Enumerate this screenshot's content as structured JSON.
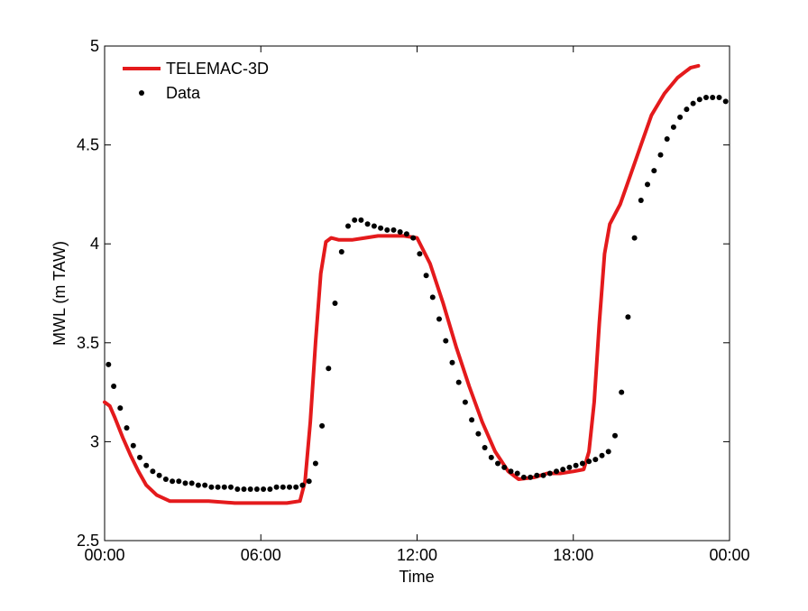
{
  "chart_data": {
    "type": "line",
    "title": "",
    "xlabel": "Time",
    "ylabel": "MWL (m TAW)",
    "xlim": [
      0,
      24
    ],
    "ylim": [
      2.5,
      5
    ],
    "x_ticks": [
      {
        "value": 0,
        "label": "00:00"
      },
      {
        "value": 6,
        "label": "06:00"
      },
      {
        "value": 12,
        "label": "12:00"
      },
      {
        "value": 18,
        "label": "18:00"
      },
      {
        "value": 24,
        "label": "00:00"
      }
    ],
    "y_ticks": [
      {
        "value": 2.5,
        "label": "2.5"
      },
      {
        "value": 3,
        "label": "3"
      },
      {
        "value": 3.5,
        "label": "3.5"
      },
      {
        "value": 4,
        "label": "4"
      },
      {
        "value": 4.5,
        "label": "4.5"
      },
      {
        "value": 5,
        "label": "5"
      }
    ],
    "grid": false,
    "legend_position": "top-left",
    "series": [
      {
        "name": "TELEMAC-3D",
        "style": "line",
        "color": "#e41a1c",
        "points": [
          [
            0.0,
            3.2
          ],
          [
            0.2,
            3.18
          ],
          [
            0.4,
            3.12
          ],
          [
            0.7,
            3.02
          ],
          [
            1.0,
            2.93
          ],
          [
            1.3,
            2.85
          ],
          [
            1.6,
            2.78
          ],
          [
            2.0,
            2.73
          ],
          [
            2.5,
            2.7
          ],
          [
            3.0,
            2.7
          ],
          [
            4.0,
            2.7
          ],
          [
            5.0,
            2.69
          ],
          [
            6.0,
            2.69
          ],
          [
            7.0,
            2.69
          ],
          [
            7.5,
            2.7
          ],
          [
            7.7,
            2.8
          ],
          [
            7.9,
            3.1
          ],
          [
            8.1,
            3.5
          ],
          [
            8.3,
            3.85
          ],
          [
            8.5,
            4.01
          ],
          [
            8.7,
            4.03
          ],
          [
            9.0,
            4.02
          ],
          [
            9.5,
            4.02
          ],
          [
            10.0,
            4.03
          ],
          [
            10.5,
            4.04
          ],
          [
            11.0,
            4.04
          ],
          [
            11.5,
            4.04
          ],
          [
            12.0,
            4.03
          ],
          [
            12.5,
            3.9
          ],
          [
            13.0,
            3.7
          ],
          [
            13.5,
            3.48
          ],
          [
            14.0,
            3.28
          ],
          [
            14.5,
            3.1
          ],
          [
            15.0,
            2.95
          ],
          [
            15.5,
            2.85
          ],
          [
            15.9,
            2.81
          ],
          [
            16.5,
            2.82
          ],
          [
            17.0,
            2.84
          ],
          [
            17.5,
            2.84
          ],
          [
            18.0,
            2.85
          ],
          [
            18.4,
            2.86
          ],
          [
            18.6,
            2.95
          ],
          [
            18.8,
            3.2
          ],
          [
            19.0,
            3.6
          ],
          [
            19.2,
            3.95
          ],
          [
            19.4,
            4.1
          ],
          [
            19.8,
            4.2
          ],
          [
            20.2,
            4.35
          ],
          [
            20.6,
            4.5
          ],
          [
            21.0,
            4.65
          ],
          [
            21.5,
            4.76
          ],
          [
            22.0,
            4.84
          ],
          [
            22.5,
            4.89
          ],
          [
            22.8,
            4.9
          ]
        ]
      },
      {
        "name": "Data",
        "style": "dots",
        "color": "#000000",
        "points": [
          [
            0.15,
            3.39
          ],
          [
            0.35,
            3.28
          ],
          [
            0.6,
            3.17
          ],
          [
            0.85,
            3.07
          ],
          [
            1.1,
            2.98
          ],
          [
            1.35,
            2.92
          ],
          [
            1.6,
            2.88
          ],
          [
            1.85,
            2.85
          ],
          [
            2.1,
            2.83
          ],
          [
            2.35,
            2.81
          ],
          [
            2.6,
            2.8
          ],
          [
            2.85,
            2.8
          ],
          [
            3.1,
            2.79
          ],
          [
            3.35,
            2.79
          ],
          [
            3.6,
            2.78
          ],
          [
            3.85,
            2.78
          ],
          [
            4.1,
            2.77
          ],
          [
            4.35,
            2.77
          ],
          [
            4.6,
            2.77
          ],
          [
            4.85,
            2.77
          ],
          [
            5.1,
            2.76
          ],
          [
            5.35,
            2.76
          ],
          [
            5.6,
            2.76
          ],
          [
            5.85,
            2.76
          ],
          [
            6.1,
            2.76
          ],
          [
            6.35,
            2.76
          ],
          [
            6.6,
            2.77
          ],
          [
            6.85,
            2.77
          ],
          [
            7.1,
            2.77
          ],
          [
            7.35,
            2.77
          ],
          [
            7.6,
            2.78
          ],
          [
            7.85,
            2.8
          ],
          [
            8.1,
            2.89
          ],
          [
            8.35,
            3.08
          ],
          [
            8.6,
            3.37
          ],
          [
            8.85,
            3.7
          ],
          [
            9.1,
            3.96
          ],
          [
            9.35,
            4.09
          ],
          [
            9.6,
            4.12
          ],
          [
            9.85,
            4.12
          ],
          [
            10.1,
            4.1
          ],
          [
            10.35,
            4.09
          ],
          [
            10.6,
            4.08
          ],
          [
            10.85,
            4.07
          ],
          [
            11.1,
            4.07
          ],
          [
            11.35,
            4.06
          ],
          [
            11.6,
            4.05
          ],
          [
            11.85,
            4.03
          ],
          [
            12.1,
            3.95
          ],
          [
            12.35,
            3.84
          ],
          [
            12.6,
            3.73
          ],
          [
            12.85,
            3.62
          ],
          [
            13.1,
            3.51
          ],
          [
            13.35,
            3.4
          ],
          [
            13.6,
            3.3
          ],
          [
            13.85,
            3.2
          ],
          [
            14.1,
            3.11
          ],
          [
            14.35,
            3.04
          ],
          [
            14.6,
            2.97
          ],
          [
            14.85,
            2.92
          ],
          [
            15.1,
            2.89
          ],
          [
            15.35,
            2.87
          ],
          [
            15.6,
            2.85
          ],
          [
            15.85,
            2.84
          ],
          [
            16.1,
            2.82
          ],
          [
            16.35,
            2.82
          ],
          [
            16.6,
            2.83
          ],
          [
            16.85,
            2.83
          ],
          [
            17.1,
            2.84
          ],
          [
            17.35,
            2.85
          ],
          [
            17.6,
            2.86
          ],
          [
            17.85,
            2.87
          ],
          [
            18.1,
            2.88
          ],
          [
            18.35,
            2.89
          ],
          [
            18.6,
            2.9
          ],
          [
            18.85,
            2.91
          ],
          [
            19.1,
            2.93
          ],
          [
            19.35,
            2.95
          ],
          [
            19.6,
            3.03
          ],
          [
            19.85,
            3.25
          ],
          [
            20.1,
            3.63
          ],
          [
            20.35,
            4.03
          ],
          [
            20.6,
            4.22
          ],
          [
            20.85,
            4.3
          ],
          [
            21.1,
            4.37
          ],
          [
            21.35,
            4.45
          ],
          [
            21.6,
            4.53
          ],
          [
            21.85,
            4.59
          ],
          [
            22.1,
            4.64
          ],
          [
            22.35,
            4.68
          ],
          [
            22.6,
            4.71
          ],
          [
            22.85,
            4.73
          ],
          [
            23.1,
            4.74
          ],
          [
            23.35,
            4.74
          ],
          [
            23.6,
            4.74
          ],
          [
            23.85,
            4.72
          ]
        ]
      }
    ]
  }
}
